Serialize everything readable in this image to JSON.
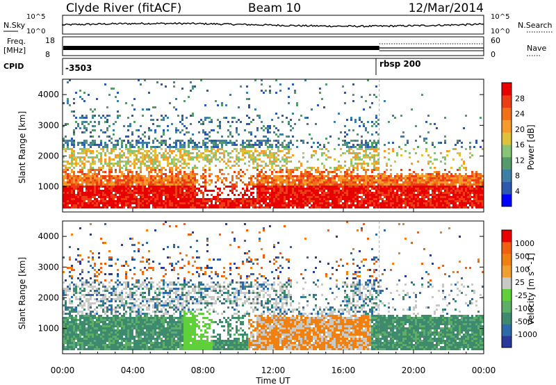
{
  "header": {
    "station": "Clyde River (fitACF)",
    "beam": "Beam 10",
    "date": "12/Mar/2014"
  },
  "summary": {
    "nsky_label": "N.Sky",
    "nsearch_label": "N.Search",
    "freq_label": "Freq.",
    "freq_unit": "[MHz]",
    "nave_label": "Nave",
    "cpid_label": "CPID",
    "noise_ticks": [
      "10^5",
      "10^0"
    ],
    "freq_ticks": [
      "18",
      "8"
    ],
    "nave_ticks": [
      "60",
      "0"
    ],
    "cpid_segments": [
      {
        "start_hour": 0,
        "end_hour": 18.05,
        "label": "-3503"
      },
      {
        "start_hour": 18.05,
        "end_hour": 24,
        "label": "rbsp 200"
      }
    ],
    "freq_mhz": 10.5
  },
  "chart_data": [
    {
      "type": "heatmap",
      "panel": "power",
      "ylabel": "Slant Range [km]",
      "ylim": [
        180,
        4500
      ],
      "yticks": [
        1000,
        2000,
        3000,
        4000
      ],
      "xlim": [
        0,
        24
      ],
      "colorbar": {
        "label": "Power [dB]",
        "range": [
          0,
          32
        ],
        "ticks": [
          "28",
          "24",
          "20",
          "16",
          "12",
          "8",
          "4"
        ],
        "colors": [
          "#0000ff",
          "#2e57b0",
          "#3d7fa5",
          "#559a6a",
          "#86c476",
          "#e0c23a",
          "#f59a2b",
          "#f07018",
          "#ec3d14",
          "#e80000"
        ]
      }
    },
    {
      "type": "heatmap",
      "panel": "velocity",
      "ylabel": "Slant Range [km]",
      "ylim": [
        180,
        4500
      ],
      "yticks": [
        1000,
        2000,
        3000,
        4000
      ],
      "xlim": [
        0,
        24
      ],
      "colorbar": {
        "label": "Velocity [m s^-1]",
        "ticks": [
          "1000",
          "500",
          "100",
          "25",
          "-25",
          "-100",
          "-500",
          "-1000"
        ],
        "colors": [
          "#2a3a9a",
          "#2f6aa8",
          "#3e8a6e",
          "#5fae68",
          "#5fd03a",
          "#c8c8c4",
          "#f0a030",
          "#f08010",
          "#f06010",
          "#e80000"
        ]
      }
    }
  ],
  "xaxis": {
    "label": "Time UT",
    "ticks": [
      "00:00",
      "04:00",
      "08:00",
      "12:00",
      "16:00",
      "20:00",
      "00:00"
    ]
  }
}
